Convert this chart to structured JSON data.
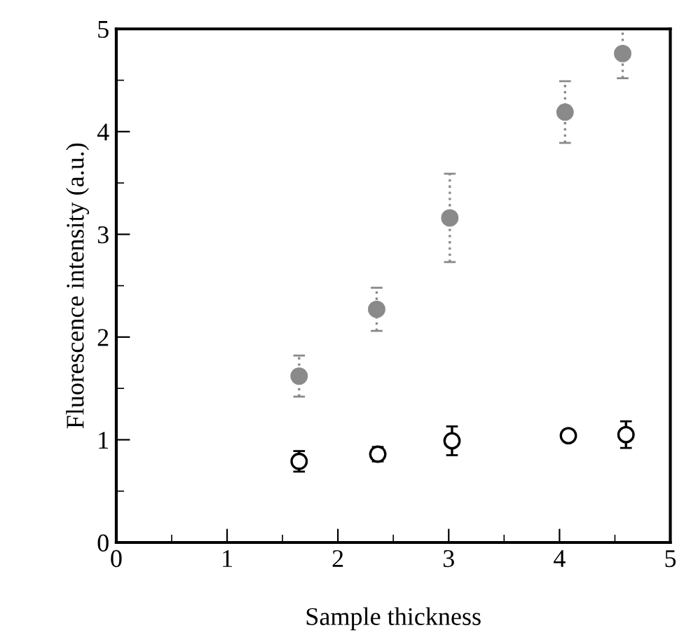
{
  "chart_data": {
    "type": "scatter",
    "xlabel": "Sample thickness",
    "ylabel": "Fluorescence intensity (a.u.)",
    "xlim": [
      0,
      5
    ],
    "ylim": [
      0,
      5
    ],
    "xticks": [
      0,
      1,
      2,
      3,
      4,
      5
    ],
    "yticks": [
      0,
      1,
      2,
      3,
      4,
      5
    ],
    "grid": false,
    "legend": false,
    "series": [
      {
        "color": "#8a8a8a",
        "marker": "circle",
        "line_style": "dotted",
        "x": [
          1.65,
          2.35,
          3.01,
          4.05,
          4.57
        ],
        "values": [
          1.62,
          2.27,
          3.16,
          4.19,
          4.76
        ],
        "errors": [
          0.2,
          0.21,
          0.43,
          0.3,
          0.24
        ]
      },
      {
        "color": "#000000",
        "marker": "circle",
        "line_style": "solid",
        "x": [
          1.65,
          2.36,
          3.03,
          4.08,
          4.6
        ],
        "values": [
          0.79,
          0.86,
          0.99,
          1.04,
          1.05
        ],
        "errors": [
          0.1,
          0.07,
          0.14,
          null,
          0.13
        ]
      }
    ]
  }
}
